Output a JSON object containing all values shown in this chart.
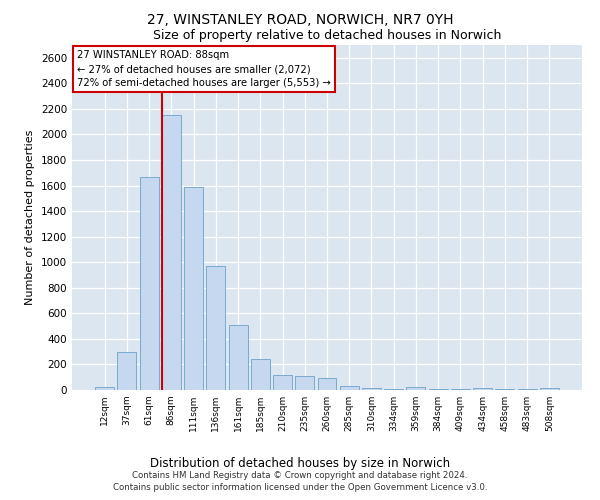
{
  "title": "27, WINSTANLEY ROAD, NORWICH, NR7 0YH",
  "subtitle": "Size of property relative to detached houses in Norwich",
  "xlabel": "Distribution of detached houses by size in Norwich",
  "ylabel": "Number of detached properties",
  "categories": [
    "12sqm",
    "37sqm",
    "61sqm",
    "86sqm",
    "111sqm",
    "136sqm",
    "161sqm",
    "185sqm",
    "210sqm",
    "235sqm",
    "260sqm",
    "285sqm",
    "310sqm",
    "334sqm",
    "359sqm",
    "384sqm",
    "409sqm",
    "434sqm",
    "458sqm",
    "483sqm",
    "508sqm"
  ],
  "values": [
    20,
    295,
    1670,
    2150,
    1590,
    970,
    510,
    245,
    120,
    110,
    95,
    35,
    15,
    5,
    20,
    5,
    5,
    15,
    5,
    5,
    15
  ],
  "bar_color": "#c5d8ef",
  "bar_edge_color": "#7aaad0",
  "highlight_index": 3,
  "highlight_color": "#cc0000",
  "ylim": [
    0,
    2700
  ],
  "yticks": [
    0,
    200,
    400,
    600,
    800,
    1000,
    1200,
    1400,
    1600,
    1800,
    2000,
    2200,
    2400,
    2600
  ],
  "annotation_text": "27 WINSTANLEY ROAD: 88sqm\n← 27% of detached houses are smaller (2,072)\n72% of semi-detached houses are larger (5,553) →",
  "annotation_box_color": "#ffffff",
  "annotation_box_edge": "#cc0000",
  "plot_bg_color": "#dce6f0",
  "fig_bg_color": "#ffffff",
  "footer_line1": "Contains HM Land Registry data © Crown copyright and database right 2024.",
  "footer_line2": "Contains public sector information licensed under the Open Government Licence v3.0."
}
